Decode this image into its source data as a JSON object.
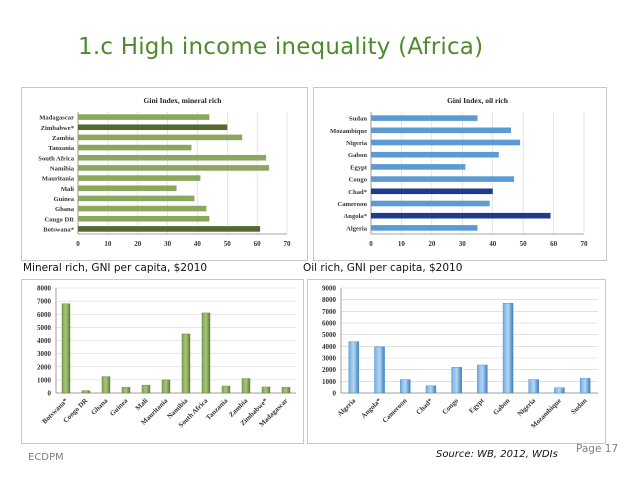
{
  "slide": {
    "title": "1.c High income inequality (Africa)",
    "caption_mineral": "Mineral rich, GNI per capita, $2010",
    "caption_oil": "Oil rich, GNI per capita, $2010",
    "source": "Source: WB, 2012, WDIs",
    "page": "Page 17",
    "footer": "ECDPM"
  },
  "colors": {
    "title": "#4e8b2f",
    "green_bar": "#8aa75d",
    "green_bar_dark": "#56682f",
    "blue_bar": "#5b9bd5",
    "blue_bar_dark": "#1f3b8c",
    "green_col_fill": "#7ea34f",
    "blue_col_fill": "#70aee5"
  },
  "chart_data": [
    {
      "type": "bar",
      "orientation": "horizontal",
      "title": "Gini Index, mineral rich",
      "categories": [
        "Madagascar",
        "Zimbabwe*",
        "Zambia",
        "Tanzania",
        "South Africa",
        "Namibia",
        "Mauritania",
        "Mali",
        "Guinea",
        "Ghana",
        "Congo DR",
        "Botswana*"
      ],
      "values": [
        44,
        50,
        55,
        38,
        63,
        64,
        41,
        33,
        39,
        43,
        44,
        61
      ],
      "highlighted": [
        "Zimbabwe*",
        "Botswana*"
      ],
      "xlim": [
        0,
        70
      ],
      "xticks": [
        "0",
        "10",
        "20",
        "30",
        "40",
        "50",
        "60",
        "70"
      ],
      "grid": true
    },
    {
      "type": "bar",
      "orientation": "horizontal",
      "title": "Gini Index, oil rich",
      "categories": [
        "Sudan",
        "Mozambique",
        "Nigeria",
        "Gabon",
        "Egypt",
        "Congo",
        "Chad*",
        "Cameroon",
        "Angola*",
        "Algeria"
      ],
      "values": [
        35,
        46,
        49,
        42,
        31,
        47,
        40,
        39,
        59,
        35
      ],
      "highlighted": [
        "Chad*",
        "Angola*"
      ],
      "xlim": [
        0,
        70
      ],
      "xticks": [
        "0",
        "10",
        "20",
        "30",
        "40",
        "50",
        "60",
        "70"
      ],
      "grid": true
    },
    {
      "type": "bar",
      "orientation": "vertical",
      "categories": [
        "Botswana*",
        "Congo DR",
        "Ghana",
        "Guinea",
        "Mali",
        "Mauritania",
        "Namibia",
        "South Africa",
        "Tanzania",
        "Zambia",
        "Zimbabwe*",
        "Madagascar"
      ],
      "values": [
        6800,
        180,
        1250,
        430,
        600,
        1000,
        4500,
        6100,
        530,
        1100,
        460,
        430
      ],
      "ylim": [
        0,
        8000
      ],
      "yticks": [
        "0",
        "1000",
        "2000",
        "3000",
        "4000",
        "5000",
        "6000",
        "7000",
        "8000"
      ],
      "grid": true
    },
    {
      "type": "bar",
      "orientation": "vertical",
      "categories": [
        "Algeria",
        "Angola*",
        "Cameroon",
        "Chad*",
        "Congo",
        "Egypt",
        "Gabon",
        "Nigeria",
        "Mozambique",
        "Sudan"
      ],
      "values": [
        4400,
        3950,
        1150,
        620,
        2200,
        2400,
        7700,
        1150,
        450,
        1250
      ],
      "ylim": [
        0,
        9000
      ],
      "yticks": [
        "0",
        "1000",
        "2000",
        "3000",
        "4000",
        "5000",
        "6000",
        "7000",
        "8000",
        "9000"
      ],
      "grid": true
    }
  ]
}
